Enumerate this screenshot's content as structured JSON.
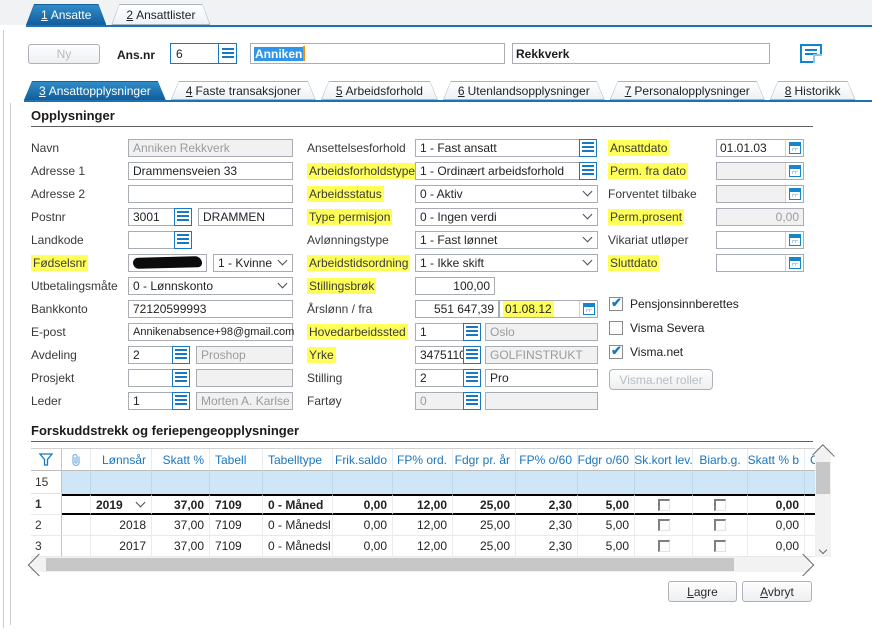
{
  "colors": {
    "accent": "#1779c4",
    "tab_active": "#1b73b4",
    "highlight": "#ffff59",
    "selection": "#2e95e8",
    "filter_row": "#cfe6f7"
  },
  "icons": {
    "lookup": "grid-lookup-icon",
    "calendar": "calendar-icon",
    "note": "note-icon",
    "filter": "funnel-filter-icon",
    "attachment": "paperclip-icon",
    "dropdown": "chevron-down-icon"
  },
  "main_tabs": [
    {
      "num": "1",
      "label": "Ansatte"
    },
    {
      "num": "2",
      "label": "Ansattlister"
    }
  ],
  "header": {
    "new_button": "Ny",
    "ansnr_label": "Ans.nr",
    "ansnr_value": "6",
    "firstname": "Anniken",
    "lastname": "Rekkverk"
  },
  "detail_tabs": [
    {
      "num": "3",
      "label": "Ansattopplysninger"
    },
    {
      "num": "4",
      "label": "Faste transaksjoner"
    },
    {
      "num": "5",
      "label": "Arbeidsforhold"
    },
    {
      "num": "6",
      "label": "Utenlandsopplysninger"
    },
    {
      "num": "7",
      "label": "Personalopplysninger"
    },
    {
      "num": "8",
      "label": "Historikk"
    }
  ],
  "section1_title": "Opplysninger",
  "left": {
    "navn": {
      "label": "Navn",
      "value": "Anniken Rekkverk"
    },
    "adresse1": {
      "label": "Adresse 1",
      "value": "Drammensveien 33"
    },
    "adresse2": {
      "label": "Adresse 2",
      "value": ""
    },
    "postnr": {
      "label": "Postnr",
      "code": "3001",
      "name": "DRAMMEN"
    },
    "landkode": {
      "label": "Landkode",
      "code": ""
    },
    "fodselsnr": {
      "label": "Fødselsnr",
      "gender": "1 - Kvinne"
    },
    "utbetalingsmate": {
      "label": "Utbetalingsmåte",
      "value": "0 - Lønnskonto"
    },
    "bankkonto": {
      "label": "Bankkonto",
      "value": "72120599993"
    },
    "epost": {
      "label": "E-post",
      "value": "Annikenabsence+98@gmail.com"
    },
    "avdeling": {
      "label": "Avdeling",
      "code": "2",
      "name": "Proshop"
    },
    "prosjekt": {
      "label": "Prosjekt",
      "code": "",
      "name": ""
    },
    "leder": {
      "label": "Leder",
      "code": "1",
      "name": "Morten A. Karlse"
    }
  },
  "middle": {
    "ansettelsesforhold": {
      "label": "Ansettelsesforhold",
      "value": "1 - Fast ansatt"
    },
    "arbeidsforholdstype": {
      "label": "Arbeidsforholdstype",
      "value": "1 - Ordinært arbeidsforhold"
    },
    "arbeidsstatus": {
      "label": "Arbeidsstatus",
      "value": "0 - Aktiv"
    },
    "typepermisjon": {
      "label": "Type permisjon",
      "value": "0 - Ingen verdi"
    },
    "avlonningstype": {
      "label": "Avlønningstype",
      "value": "1 - Fast lønnet"
    },
    "arbeidstidsordning": {
      "label": "Arbeidstidsordning",
      "value": "1 - Ikke skift"
    },
    "stillingsbrok": {
      "label": "Stillingsbrøk",
      "value": "100,00"
    },
    "arslonn": {
      "label": "Årslønn / fra",
      "value": "551 647,39",
      "date": "01.08.12"
    },
    "hovedarbeidssted": {
      "label": "Hovedarbeidssted",
      "code": "1",
      "name": "Oslo"
    },
    "yrke": {
      "label": "Yrke",
      "code": "3475110",
      "name": "GOLFINSTRUKT"
    },
    "stilling": {
      "label": "Stilling",
      "code": "2",
      "name": "Pro"
    },
    "fartoy": {
      "label": "Fartøy",
      "code": "0",
      "name": ""
    }
  },
  "right": {
    "ansattdato": {
      "label": "Ansattdato",
      "value": "01.01.03"
    },
    "permfradato": {
      "label": "Perm. fra dato",
      "value": ""
    },
    "forventet": {
      "label": "Forventet tilbake",
      "value": ""
    },
    "permprosent": {
      "label": "Perm.prosent",
      "value": "0,00"
    },
    "vikariat": {
      "label": "Vikariat utløper",
      "value": ""
    },
    "sluttdato": {
      "label": "Sluttdato",
      "value": ""
    },
    "checkboxes": [
      {
        "label": "Pensjonsinnberettes",
        "checked": true
      },
      {
        "label": "Visma Severa",
        "checked": false
      },
      {
        "label": "Visma.net",
        "checked": true
      }
    ],
    "roller_button": "Visma.net roller"
  },
  "table": {
    "title": "Forskuddstrekk og feriepengeopplysninger",
    "count": "15",
    "headers": [
      "Lønnsår",
      "Skatt %",
      "Tabell",
      "Tabelltype",
      "Frik.saldo",
      "FP% ord.",
      "Fdgr pr. år",
      "FP% o/60",
      "Fdgr o/60",
      "Sk.kort lev.",
      "Biarb.g.",
      "Skatt % b",
      "O"
    ],
    "rows": [
      {
        "num": "1",
        "bold": true,
        "year_dropdown": true,
        "cells": [
          "2019",
          "37,00",
          "7109",
          "0 - Måned",
          "0,00",
          "12,00",
          "25,00",
          "2,30",
          "5,00",
          "",
          "",
          "0,00"
        ]
      },
      {
        "num": "2",
        "bold": false,
        "year_dropdown": false,
        "cells": [
          "2018",
          "37,00",
          "7109",
          "0 - Månedsl",
          "0,00",
          "12,00",
          "25,00",
          "2,30",
          "5,00",
          "",
          "",
          "0,00"
        ]
      },
      {
        "num": "3",
        "bold": false,
        "year_dropdown": false,
        "cells": [
          "2017",
          "37,00",
          "7109",
          "0 - Månedsl",
          "0,00",
          "12,00",
          "25,00",
          "2,30",
          "5,00",
          "",
          "",
          "0,00"
        ]
      }
    ]
  },
  "footer": {
    "save": "Lagre",
    "cancel": "Avbryt"
  }
}
